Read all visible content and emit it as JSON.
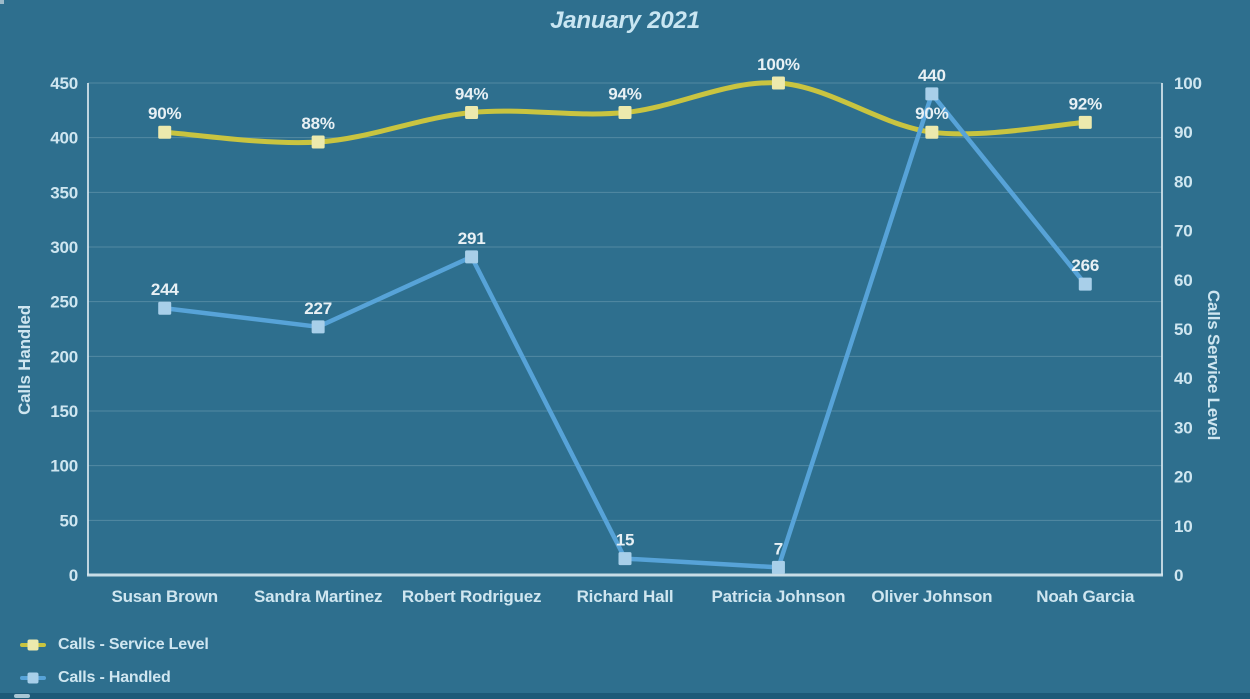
{
  "title": "January 2021",
  "colors": {
    "background": "#2e6f8e",
    "bottom_bar": "#1e5a78",
    "axis": "#d7e8ef",
    "tick_text": "#cfe6f0",
    "label_text": "#e8f0f4",
    "title_text": "#c9e6f2",
    "service_line": "#c9c440",
    "service_marker": "#ece9ad",
    "handled_line": "#57a3d8",
    "handled_marker": "#a8cfe9"
  },
  "chart_data": {
    "type": "line",
    "title": "January 2021",
    "categories": [
      "Susan Brown",
      "Sandra Martinez",
      "Robert Rodriguez",
      "Richard Hall",
      "Patricia Johnson",
      "Oliver Johnson",
      "Noah Garcia"
    ],
    "series": [
      {
        "name": "Calls - Service Level",
        "axis": "right",
        "smooth": true,
        "color": "#c9c440",
        "marker_color": "#ece9ad",
        "values": [
          90,
          88,
          94,
          94,
          100,
          90,
          92
        ],
        "labels": [
          "90%",
          "88%",
          "94%",
          "94%",
          "100%",
          "90%",
          "92%"
        ]
      },
      {
        "name": "Calls - Handled",
        "axis": "left",
        "smooth": false,
        "color": "#57a3d8",
        "marker_color": "#a8cfe9",
        "values": [
          244,
          227,
          291,
          15,
          7,
          440,
          266
        ],
        "labels": [
          "244",
          "227",
          "291",
          "15",
          "7",
          "440",
          "266"
        ]
      }
    ],
    "left_axis": {
      "label": "Calls Handled",
      "min": 0,
      "max": 450,
      "step": 50,
      "ticks": [
        450,
        400,
        350,
        300,
        250,
        200,
        150,
        100,
        50,
        0
      ]
    },
    "right_axis": {
      "label": "Calls Service Level",
      "min": 0,
      "max": 100,
      "step": 10,
      "ticks": [
        100,
        90,
        80,
        70,
        60,
        50,
        40,
        30,
        20,
        10,
        0
      ]
    },
    "grid": true,
    "legend_position": "bottom-left"
  },
  "legend": {
    "items": [
      {
        "label": "Calls - Service Level"
      },
      {
        "label": "Calls - Handled"
      }
    ]
  }
}
